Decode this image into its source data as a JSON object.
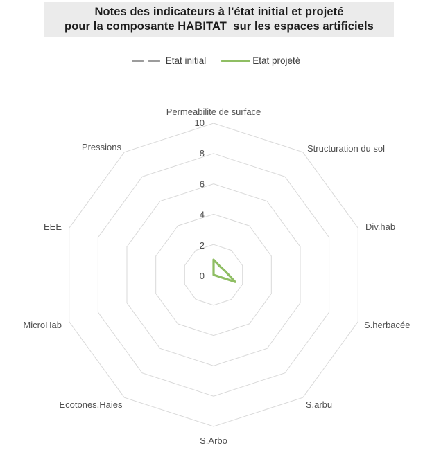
{
  "title": {
    "line1": "Notes des indicateurs à l'état initial et projeté",
    "line2": "pour la composante HABITAT  sur les espaces artificiels"
  },
  "legend": {
    "position": "top",
    "items": [
      {
        "label": "Etat initial",
        "style": "dashed",
        "color": "#9c9c9c"
      },
      {
        "label": "Etat projeté",
        "style": "solid",
        "color": "#8fbe63"
      }
    ]
  },
  "chart_data": {
    "type": "radar",
    "title": "Notes des indicateurs à l'état initial et projeté pour la composante HABITAT sur les espaces artificiels",
    "categories": [
      "Permeabilite de surface",
      "Structuration du sol",
      "Div.hab",
      "S.herbacée",
      "S.arbu",
      "S.Arbo",
      "Ecotones.Haies",
      "MicroHab",
      "EEE",
      "Pressions"
    ],
    "series": [
      {
        "name": "Etat initial",
        "line": "dashed",
        "color": "#9c9c9c",
        "values": [
          0,
          0,
          0,
          0,
          0,
          0,
          0,
          0,
          0,
          0
        ]
      },
      {
        "name": "Etat projeté",
        "line": "solid",
        "color": "#8fbe63",
        "values": [
          1,
          0.7,
          0.8,
          1.5,
          0,
          0,
          0,
          0,
          0,
          0
        ]
      }
    ],
    "radial_ticks": [
      0,
      2,
      4,
      6,
      8,
      10
    ],
    "range": [
      0,
      10
    ],
    "grid": {
      "shape": "decagon-rings",
      "spokes": false,
      "color": "#d9d9d9"
    },
    "legend_position": "top",
    "text_color": "#4f4f4f"
  }
}
